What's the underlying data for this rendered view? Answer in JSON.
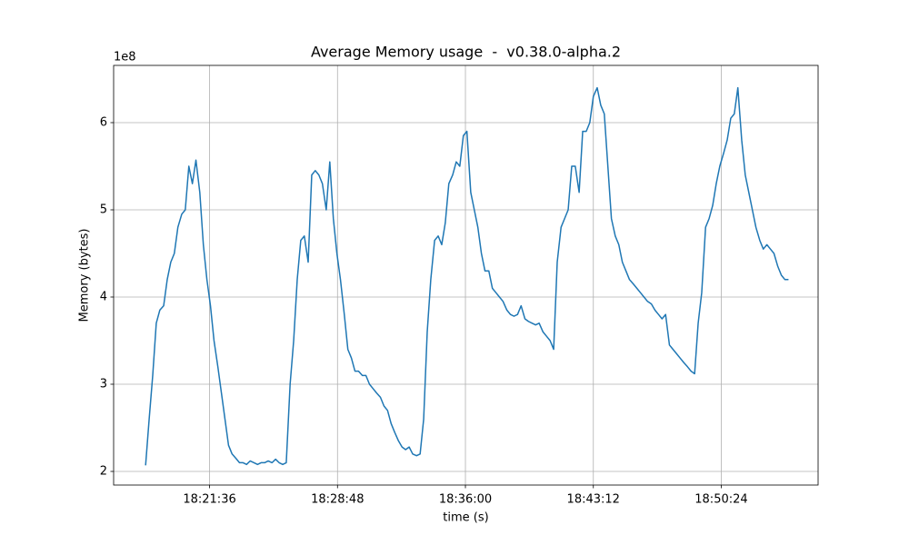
{
  "chart_data": {
    "type": "line",
    "title": "Average Memory usage  -  v0.38.0-alpha.2",
    "xlabel": "time (s)",
    "ylabel": "Memory (bytes)",
    "y_offset_label": "1e8",
    "grid": true,
    "xlim": [
      65772,
      68151
    ],
    "ylim": [
      184375000,
      665625000
    ],
    "xticks": [
      {
        "value": 66096,
        "label": "18:21:36"
      },
      {
        "value": 66528,
        "label": "18:28:48"
      },
      {
        "value": 66960,
        "label": "18:36:00"
      },
      {
        "value": 67392,
        "label": "18:43:12"
      },
      {
        "value": 67824,
        "label": "18:50:24"
      }
    ],
    "yticks": [
      {
        "value": 200000000,
        "label": "2"
      },
      {
        "value": 300000000,
        "label": "3"
      },
      {
        "value": 400000000,
        "label": "4"
      },
      {
        "value": 500000000,
        "label": "5"
      },
      {
        "value": 600000000,
        "label": "6"
      }
    ],
    "x": [
      65880,
      65892,
      65904,
      65916,
      65928,
      65941,
      65953,
      65965,
      65977,
      65989,
      66002,
      66014,
      66026,
      66038,
      66050,
      66063,
      66075,
      66087,
      66099,
      66111,
      66124,
      66136,
      66148,
      66160,
      66172,
      66185,
      66197,
      66209,
      66221,
      66233,
      66246,
      66258,
      66270,
      66282,
      66294,
      66307,
      66319,
      66331,
      66343,
      66355,
      66368,
      66380,
      66392,
      66404,
      66416,
      66429,
      66441,
      66453,
      66465,
      66477,
      66490,
      66502,
      66514,
      66526,
      66538,
      66551,
      66563,
      66575,
      66587,
      66599,
      66612,
      66624,
      66636,
      66648,
      66660,
      66673,
      66685,
      66697,
      66709,
      66721,
      66734,
      66746,
      66758,
      66770,
      66782,
      66795,
      66807,
      66819,
      66831,
      66843,
      66856,
      66868,
      66880,
      66892,
      66904,
      66917,
      66929,
      66941,
      66953,
      66965,
      66978,
      66990,
      67002,
      67014,
      67026,
      67039,
      67051,
      67063,
      67075,
      67087,
      67100,
      67112,
      67124,
      67136,
      67148,
      67161,
      67173,
      67185,
      67197,
      67209,
      67222,
      67234,
      67246,
      67258,
      67270,
      67283,
      67295,
      67307,
      67319,
      67331,
      67344,
      67356,
      67368,
      67380,
      67392,
      67405,
      67417,
      67429,
      67441,
      67453,
      67466,
      67478,
      67490,
      67502,
      67514,
      67527,
      67539,
      67551,
      67563,
      67575,
      67588,
      67600,
      67612,
      67624,
      67636,
      67649,
      67661,
      67673,
      67685,
      67697,
      67710,
      67722,
      67734,
      67746,
      67758,
      67771,
      67783,
      67795,
      67807,
      67819,
      67832,
      67844,
      67856,
      67868,
      67880,
      67893,
      67905,
      67917,
      67929,
      67941,
      67954,
      67966,
      67978,
      67990,
      68002,
      68015,
      68027,
      68039,
      68051
    ],
    "series": [
      {
        "color": "#1f77b4",
        "values": [
          207000000,
          260000000,
          310000000,
          370000000,
          385000000,
          390000000,
          420000000,
          440000000,
          450000000,
          480000000,
          495000000,
          500000000,
          550000000,
          530000000,
          557000000,
          520000000,
          460000000,
          420000000,
          390000000,
          350000000,
          320000000,
          290000000,
          260000000,
          230000000,
          220000000,
          215000000,
          210000000,
          210000000,
          208000000,
          212000000,
          210000000,
          208000000,
          210000000,
          210000000,
          212000000,
          210000000,
          214000000,
          210000000,
          208000000,
          210000000,
          300000000,
          350000000,
          420000000,
          465000000,
          470000000,
          440000000,
          540000000,
          545000000,
          540000000,
          530000000,
          500000000,
          555000000,
          490000000,
          450000000,
          420000000,
          380000000,
          340000000,
          330000000,
          315000000,
          315000000,
          310000000,
          310000000,
          300000000,
          295000000,
          290000000,
          285000000,
          275000000,
          270000000,
          255000000,
          245000000,
          235000000,
          228000000,
          225000000,
          228000000,
          220000000,
          218000000,
          220000000,
          260000000,
          360000000,
          420000000,
          465000000,
          470000000,
          460000000,
          485000000,
          530000000,
          540000000,
          555000000,
          550000000,
          585000000,
          590000000,
          520000000,
          500000000,
          480000000,
          450000000,
          430000000,
          430000000,
          410000000,
          405000000,
          400000000,
          395000000,
          385000000,
          380000000,
          378000000,
          380000000,
          390000000,
          375000000,
          372000000,
          370000000,
          368000000,
          370000000,
          360000000,
          355000000,
          350000000,
          340000000,
          440000000,
          480000000,
          490000000,
          500000000,
          550000000,
          550000000,
          520000000,
          590000000,
          590000000,
          600000000,
          630000000,
          640000000,
          620000000,
          610000000,
          550000000,
          490000000,
          470000000,
          460000000,
          440000000,
          430000000,
          420000000,
          415000000,
          410000000,
          405000000,
          400000000,
          395000000,
          392000000,
          385000000,
          380000000,
          375000000,
          380000000,
          345000000,
          340000000,
          335000000,
          330000000,
          325000000,
          320000000,
          315000000,
          312000000,
          370000000,
          405000000,
          480000000,
          490000000,
          505000000,
          530000000,
          550000000,
          565000000,
          580000000,
          605000000,
          610000000,
          640000000,
          580000000,
          540000000,
          520000000,
          500000000,
          480000000,
          465000000,
          455000000,
          460000000,
          455000000,
          450000000,
          435000000,
          425000000,
          420000000,
          420000000
        ]
      }
    ]
  }
}
